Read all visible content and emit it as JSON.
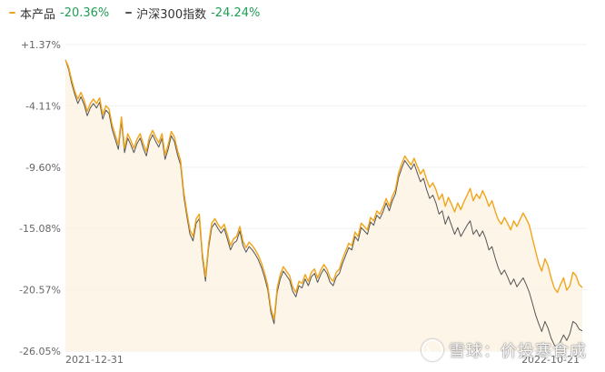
{
  "legend": {
    "product_name": "本产品",
    "product_value": "-20.36%",
    "index_name": "沪深300指数",
    "index_value": "-24.24%"
  },
  "watermark": {
    "text": "雪球：价投寒食成"
  },
  "colors": {
    "product": "#f0a51b",
    "index": "#555555",
    "area_fill": "#fdf3e2",
    "legend_value_green": "#1f9d55",
    "axis_text": "#666666",
    "grid": "#f0f0f0"
  },
  "chart_data": {
    "type": "line",
    "title": "",
    "xlabel": "",
    "ylabel": "",
    "x_range": [
      "2021-12-31",
      "2022-10-21"
    ],
    "x_tick_labels": [
      "2021-12-31",
      "2022-10-21"
    ],
    "ylim": [
      -26.05,
      1.37
    ],
    "y_tick_labels": [
      "+1.37%",
      "-4.11%",
      "-9.60%",
      "-15.08%",
      "-20.57%",
      "-26.05%"
    ],
    "y_tick_values": [
      1.37,
      -4.11,
      -9.6,
      -15.08,
      -20.57,
      -26.05
    ],
    "grid": "horizontal",
    "legend_position": "top-left",
    "series": [
      {
        "name": "本产品",
        "final_value": -20.36,
        "values": [
          0.0,
          -0.6,
          -1.8,
          -2.8,
          -3.5,
          -2.9,
          -3.6,
          -4.6,
          -3.9,
          -3.5,
          -3.9,
          -3.4,
          -4.9,
          -4.1,
          -4.4,
          -5.8,
          -6.7,
          -7.6,
          -5.1,
          -7.9,
          -6.6,
          -7.2,
          -7.9,
          -7.1,
          -6.6,
          -7.5,
          -8.2,
          -6.9,
          -6.3,
          -6.9,
          -7.4,
          -6.6,
          -8.5,
          -7.6,
          -6.4,
          -6.9,
          -8.1,
          -9.0,
          -11.8,
          -13.6,
          -15.2,
          -15.8,
          -14.2,
          -13.8,
          -17.3,
          -19.4,
          -16.4,
          -14.6,
          -14.2,
          -14.7,
          -15.1,
          -14.7,
          -15.6,
          -16.6,
          -16.0,
          -15.8,
          -14.9,
          -16.2,
          -16.8,
          -16.3,
          -16.6,
          -17.0,
          -17.5,
          -18.2,
          -19.1,
          -20.2,
          -22.2,
          -23.2,
          -20.4,
          -19.2,
          -18.5,
          -18.9,
          -19.3,
          -20.3,
          -20.8,
          -19.8,
          -20.0,
          -19.2,
          -19.8,
          -19.0,
          -18.7,
          -19.5,
          -18.8,
          -18.3,
          -18.7,
          -19.5,
          -19.8,
          -19.0,
          -18.7,
          -17.8,
          -17.1,
          -16.4,
          -16.6,
          -15.4,
          -15.8,
          -14.6,
          -14.9,
          -15.2,
          -14.1,
          -14.4,
          -13.5,
          -13.8,
          -13.2,
          -12.4,
          -13.1,
          -12.2,
          -11.6,
          -10.1,
          -9.3,
          -8.6,
          -9.0,
          -9.4,
          -8.8,
          -9.5,
          -10.2,
          -9.8,
          -10.7,
          -11.4,
          -11.0,
          -11.6,
          -12.5,
          -12.0,
          -13.1,
          -12.3,
          -12.9,
          -13.6,
          -12.8,
          -13.4,
          -12.7,
          -12.1,
          -11.5,
          -12.6,
          -12.0,
          -12.4,
          -11.7,
          -12.3,
          -13.1,
          -12.6,
          -13.5,
          -14.3,
          -14.7,
          -14.1,
          -14.6,
          -15.2,
          -14.4,
          -14.9,
          -14.3,
          -13.7,
          -14.2,
          -14.8,
          -16.0,
          -17.1,
          -18.2,
          -18.9,
          -17.8,
          -18.4,
          -19.5,
          -20.4,
          -20.8,
          -20.1,
          -19.5,
          -20.6,
          -20.2,
          -19.0,
          -19.3,
          -20.1,
          -20.36
        ]
      },
      {
        "name": "沪深300指数",
        "final_value": -24.24,
        "values": [
          0.0,
          -0.8,
          -2.1,
          -3.1,
          -3.9,
          -3.3,
          -4.0,
          -5.0,
          -4.3,
          -3.9,
          -4.3,
          -3.8,
          -5.3,
          -4.5,
          -4.8,
          -6.2,
          -7.1,
          -8.0,
          -5.5,
          -8.3,
          -7.0,
          -7.6,
          -8.3,
          -7.5,
          -7.0,
          -7.9,
          -8.6,
          -7.3,
          -6.7,
          -7.3,
          -7.8,
          -7.0,
          -8.9,
          -8.0,
          -6.8,
          -7.3,
          -8.5,
          -9.4,
          -12.2,
          -14.0,
          -15.6,
          -16.2,
          -14.6,
          -14.2,
          -17.7,
          -19.8,
          -16.8,
          -15.0,
          -14.6,
          -15.1,
          -15.5,
          -15.1,
          -16.0,
          -17.0,
          -16.4,
          -16.2,
          -15.3,
          -16.6,
          -17.2,
          -16.7,
          -17.0,
          -17.4,
          -17.9,
          -18.6,
          -19.5,
          -20.6,
          -22.6,
          -23.6,
          -20.8,
          -19.6,
          -18.9,
          -19.3,
          -19.7,
          -20.7,
          -21.2,
          -20.2,
          -20.4,
          -19.6,
          -20.2,
          -19.4,
          -19.1,
          -19.9,
          -19.2,
          -18.7,
          -19.1,
          -19.9,
          -20.2,
          -19.4,
          -19.1,
          -18.2,
          -17.5,
          -16.8,
          -17.0,
          -15.8,
          -16.2,
          -15.0,
          -15.3,
          -15.6,
          -14.5,
          -14.8,
          -13.9,
          -14.2,
          -13.6,
          -12.8,
          -13.5,
          -12.6,
          -12.0,
          -10.5,
          -9.7,
          -9.0,
          -9.4,
          -9.8,
          -9.3,
          -10.1,
          -10.9,
          -10.6,
          -11.6,
          -12.4,
          -12.1,
          -12.8,
          -13.8,
          -13.5,
          -14.7,
          -14.0,
          -14.8,
          -15.6,
          -15.0,
          -15.8,
          -15.3,
          -14.8,
          -14.4,
          -15.6,
          -15.2,
          -15.8,
          -15.3,
          -16.0,
          -17.0,
          -16.7,
          -17.7,
          -18.6,
          -19.2,
          -18.8,
          -19.4,
          -20.1,
          -19.6,
          -20.3,
          -19.9,
          -19.5,
          -20.1,
          -20.8,
          -21.8,
          -22.8,
          -23.6,
          -24.3,
          -23.4,
          -24.0,
          -24.9,
          -25.5,
          -25.8,
          -25.2,
          -24.6,
          -25.1,
          -24.5,
          -23.4,
          -23.6,
          -24.1,
          -24.24
        ]
      }
    ]
  }
}
